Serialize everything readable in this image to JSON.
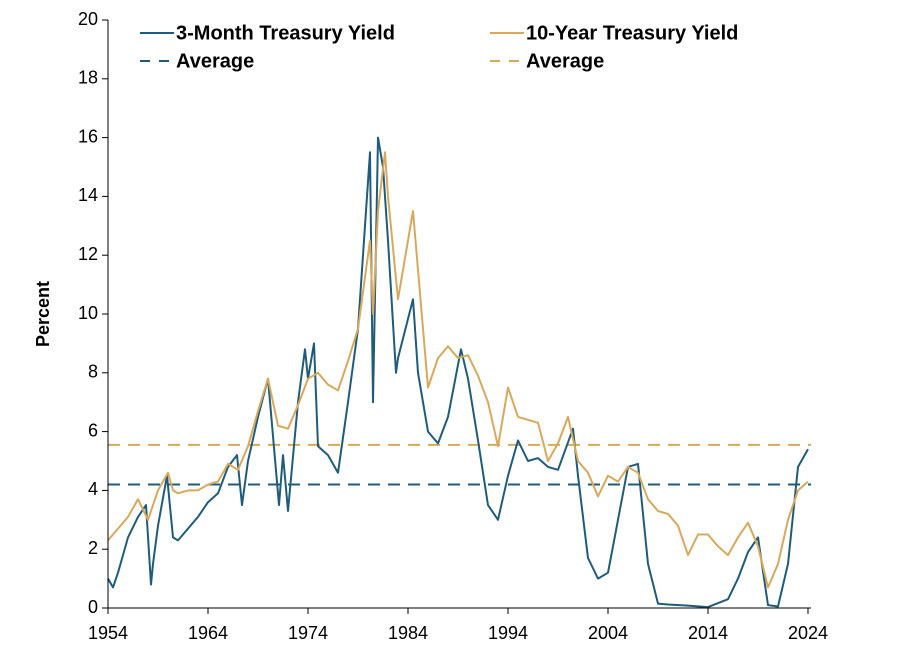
{
  "chart_data": {
    "type": "line",
    "y_label": "Percent",
    "xlim": [
      1954,
      2024.3
    ],
    "ylim": [
      0,
      20
    ],
    "xticks": [
      1954,
      1964,
      1974,
      1984,
      1994,
      2004,
      2014,
      2024
    ],
    "yticks": [
      0,
      2,
      4,
      6,
      8,
      10,
      12,
      14,
      16,
      18,
      20
    ],
    "grid": false,
    "legend": "top",
    "series": [
      {
        "name": "3-Month Treasury Yield",
        "color": "#1f5c7c",
        "x": [
          1954,
          1954.5,
          1955,
          1955.5,
          1956,
          1957,
          1957.8,
          1958.3,
          1958.5,
          1959,
          1959.9,
          1960.5,
          1961,
          1962,
          1963,
          1964,
          1965,
          1966,
          1966.9,
          1967.4,
          1968,
          1969,
          1970,
          1971.1,
          1971.5,
          1972,
          1973,
          1973.7,
          1974,
          1974.6,
          1975,
          1976,
          1977,
          1978,
          1979,
          1980.2,
          1980.5,
          1981,
          1981.5,
          1982,
          1982.8,
          1983,
          1984.5,
          1985,
          1986,
          1987,
          1988,
          1989.3,
          1990,
          1991,
          1992,
          1993,
          1994,
          1995,
          1996,
          1997,
          1998,
          1999,
          2000.5,
          2001,
          2002,
          2003,
          2004,
          2005,
          2006,
          2007,
          2008,
          2009,
          2010,
          2012,
          2014,
          2016,
          2017,
          2018,
          2019,
          2020,
          2021,
          2022,
          2023,
          2024
        ],
        "values": [
          1.0,
          0.7,
          1.2,
          1.8,
          2.4,
          3.1,
          3.5,
          0.8,
          1.5,
          2.8,
          4.5,
          2.4,
          2.3,
          2.7,
          3.1,
          3.6,
          3.9,
          4.8,
          5.2,
          3.5,
          5.0,
          6.5,
          7.8,
          3.5,
          5.2,
          3.3,
          7.0,
          8.8,
          7.8,
          9.0,
          5.5,
          5.2,
          4.6,
          7.0,
          9.5,
          15.5,
          7.0,
          16.0,
          15.0,
          12.5,
          8.0,
          8.5,
          10.5,
          8.0,
          6.0,
          5.6,
          6.5,
          8.8,
          7.8,
          5.7,
          3.5,
          3.0,
          4.5,
          5.7,
          5.0,
          5.1,
          4.8,
          4.7,
          6.1,
          4.5,
          1.7,
          1.0,
          1.2,
          3.0,
          4.8,
          4.9,
          1.5,
          0.15,
          0.12,
          0.08,
          0.03,
          0.3,
          1.0,
          1.9,
          2.4,
          0.1,
          0.05,
          1.5,
          4.8,
          5.4
        ]
      },
      {
        "name": "10-Year Treasury Yield",
        "color": "#d8a95c",
        "x": [
          1954,
          1955,
          1956,
          1957,
          1958,
          1959,
          1960,
          1960.5,
          1961,
          1962,
          1963,
          1964,
          1965,
          1966,
          1967,
          1968,
          1969,
          1970,
          1971,
          1972,
          1973,
          1974,
          1975,
          1976,
          1977,
          1978,
          1979,
          1980.2,
          1980.5,
          1981,
          1981.7,
          1982,
          1983,
          1984.5,
          1985,
          1986,
          1987,
          1988,
          1989,
          1990,
          1991,
          1992,
          1993,
          1994,
          1995,
          1996,
          1997,
          1998,
          1999,
          2000,
          2001,
          2002,
          2003,
          2004,
          2005,
          2006,
          2007,
          2008,
          2009,
          2010,
          2011,
          2012,
          2013,
          2014,
          2015,
          2016,
          2017,
          2018,
          2019,
          2020,
          2021,
          2022,
          2023,
          2024
        ],
        "values": [
          2.3,
          2.7,
          3.1,
          3.7,
          3.0,
          4.0,
          4.6,
          4.0,
          3.9,
          4.0,
          4.0,
          4.2,
          4.3,
          4.9,
          4.7,
          5.5,
          6.7,
          7.8,
          6.2,
          6.1,
          6.9,
          7.8,
          8.0,
          7.6,
          7.4,
          8.4,
          9.5,
          12.5,
          10.0,
          13.5,
          15.5,
          14.0,
          10.5,
          13.5,
          11.5,
          7.5,
          8.5,
          8.9,
          8.5,
          8.6,
          7.9,
          7.0,
          5.5,
          7.5,
          6.5,
          6.4,
          6.3,
          5.0,
          5.6,
          6.5,
          5.0,
          4.6,
          3.8,
          4.5,
          4.3,
          4.8,
          4.6,
          3.7,
          3.3,
          3.2,
          2.8,
          1.8,
          2.5,
          2.5,
          2.1,
          1.8,
          2.4,
          2.9,
          2.1,
          0.7,
          1.5,
          3.0,
          4.0,
          4.3
        ]
      }
    ],
    "averages": [
      {
        "name": "Average",
        "color": "#1f5c7c",
        "value": 4.2
      },
      {
        "name": "Average",
        "color": "#d8a95c",
        "value": 5.55
      }
    ]
  }
}
